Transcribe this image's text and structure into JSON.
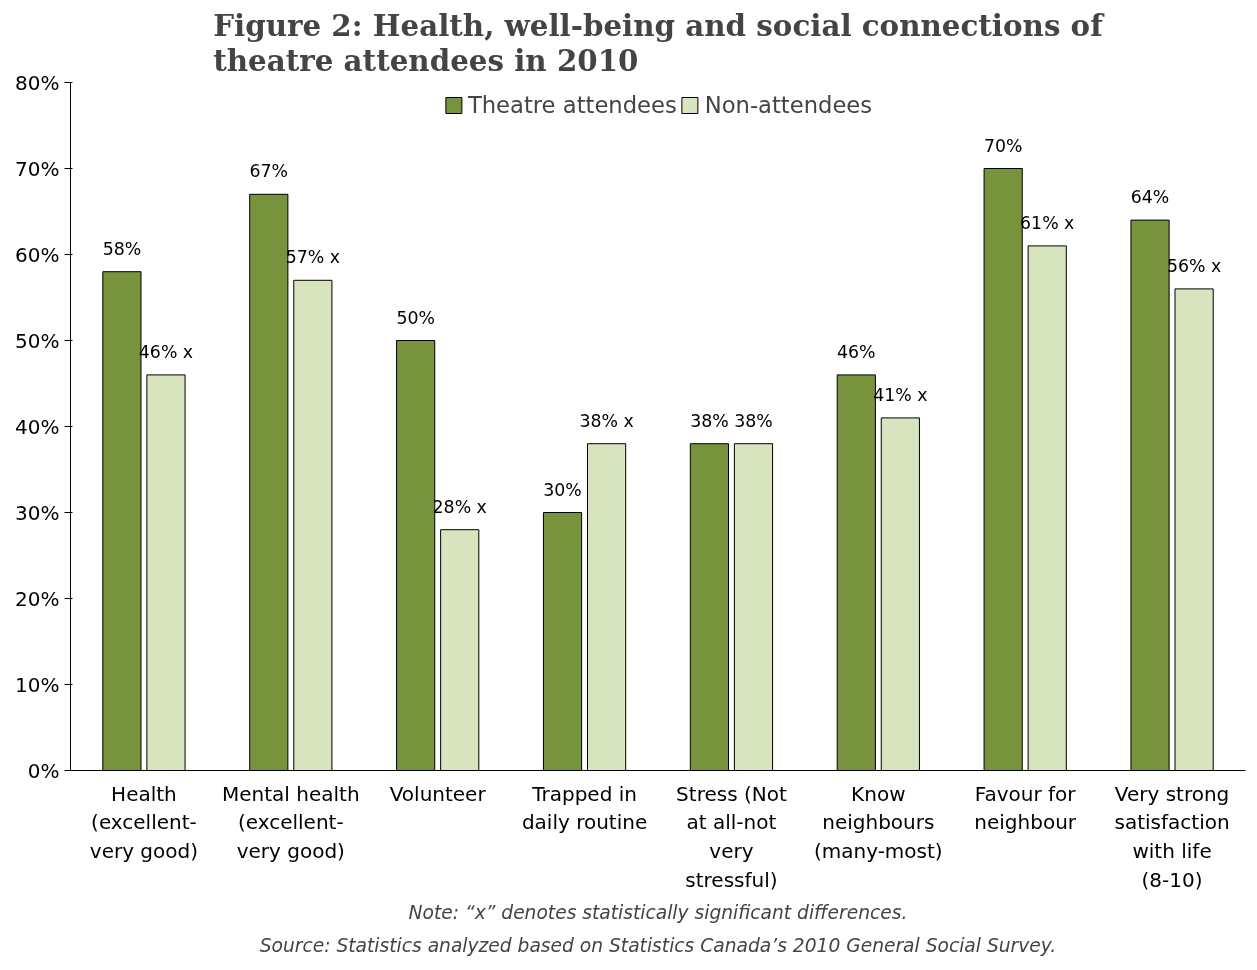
{
  "chart_data": {
    "type": "bar",
    "title": "Figure 2: Health, well-being and social connections of theatre attendees in 2010",
    "categories": [
      "Health (excellent-very good)",
      "Mental health (excellent-very good)",
      "Volunteer",
      "Trapped in daily routine",
      "Stress (Not at all-not very stressful)",
      "Know neighbours (many-most)",
      "Favour for neighbour",
      "Very strong satisfaction with life (8-10)"
    ],
    "series": [
      {
        "name": "Theatre attendees",
        "color": "#77933c",
        "values": [
          58,
          67,
          50,
          30,
          38,
          46,
          70,
          64
        ],
        "value_labels": [
          "58%",
          "67%",
          "50%",
          "30%",
          "38%",
          "46%",
          "70%",
          "64%"
        ]
      },
      {
        "name": "Non-attendees",
        "color": "#d7e4bd",
        "values": [
          46,
          57,
          28,
          38,
          38,
          41,
          61,
          56
        ],
        "value_labels": [
          "46% x",
          "57% x",
          "28% x",
          "38% x",
          "38%",
          "41% x",
          "61% x",
          "56% x"
        ]
      }
    ],
    "ylim": [
      0,
      80
    ],
    "yticks": [
      {
        "value": 0,
        "label": "0%"
      },
      {
        "value": 10,
        "label": "10%"
      },
      {
        "value": 20,
        "label": "20%"
      },
      {
        "value": 30,
        "label": "30%"
      },
      {
        "value": 40,
        "label": "40%"
      },
      {
        "value": 50,
        "label": "50%"
      },
      {
        "value": 60,
        "label": "60%"
      },
      {
        "value": 70,
        "label": "70%"
      },
      {
        "value": 80,
        "label": "80%"
      }
    ],
    "grid": false,
    "legend": "top",
    "annotations": [
      "Note: “x” denotes statistically significant differences.",
      "Source: Statistics analyzed based on Statistics Canada’s 2010 General Social Survey."
    ]
  }
}
